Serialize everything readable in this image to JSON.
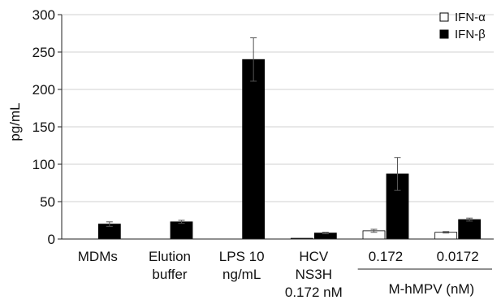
{
  "chart_data": {
    "type": "bar",
    "title": "",
    "xlabel": "",
    "ylabel": "pg/mL",
    "ylim": [
      0,
      300
    ],
    "yticks": [
      0,
      50,
      100,
      150,
      200,
      250,
      300
    ],
    "grid": "horizontal",
    "legend_position": "top-right",
    "categories": [
      [
        "MDMs"
      ],
      [
        "Elution",
        "buffer"
      ],
      [
        "LPS 10",
        "ng/mL"
      ],
      [
        "HCV",
        "NS3H",
        "0.172 nM"
      ],
      [
        "0.172"
      ],
      [
        "0.0172"
      ]
    ],
    "series": [
      {
        "name": "IFN-α",
        "color": "#ffffff",
        "values": [
          0,
          0,
          0,
          1,
          11,
          9
        ],
        "errors": [
          0,
          0,
          0,
          0,
          2,
          1
        ]
      },
      {
        "name": "IFN-β",
        "color": "#000000",
        "values": [
          20,
          23,
          240,
          8,
          87,
          26
        ],
        "errors": [
          3,
          2,
          29,
          1,
          22,
          2
        ]
      }
    ],
    "group_annotation": {
      "label": "M-hMPV (nM)",
      "category_indices": [
        4,
        5
      ]
    }
  }
}
